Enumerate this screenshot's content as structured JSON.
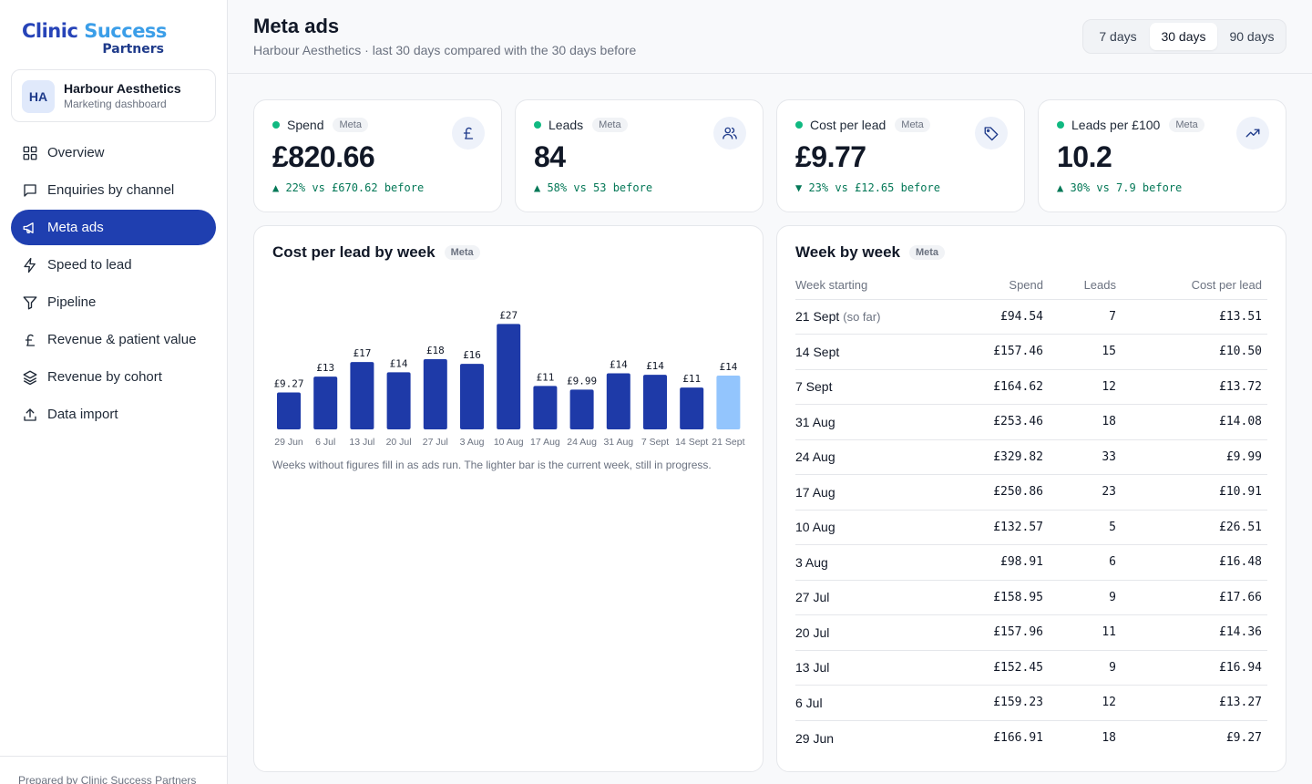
{
  "brand": {
    "line1_first": "Clinic",
    "line1_rest": " Success",
    "line2": "Partners"
  },
  "account": {
    "initials": "HA",
    "name": "Harbour Aesthetics",
    "subtitle": "Marketing dashboard"
  },
  "nav": [
    {
      "label": "Overview",
      "icon": "grid-icon",
      "active": false
    },
    {
      "label": "Enquiries by channel",
      "icon": "chat-icon",
      "active": false
    },
    {
      "label": "Meta ads",
      "icon": "megaphone-icon",
      "active": true
    },
    {
      "label": "Speed to lead",
      "icon": "bolt-icon",
      "active": false
    },
    {
      "label": "Pipeline",
      "icon": "filter-icon",
      "active": false
    },
    {
      "label": "Revenue & patient value",
      "icon": "pound-icon",
      "active": false
    },
    {
      "label": "Revenue by cohort",
      "icon": "layers-icon",
      "active": false
    },
    {
      "label": "Data import",
      "icon": "upload-icon",
      "active": false
    }
  ],
  "footer": "Prepared by Clinic Success Partners",
  "header": {
    "title": "Meta ads",
    "subtitle": "Harbour Aesthetics · last 30 days compared with the 30 days before",
    "ranges": [
      "7 days",
      "30 days",
      "90 days"
    ],
    "selected_range": "30 days"
  },
  "kpis": [
    {
      "label": "Spend",
      "tag": "Meta",
      "value": "£820.66",
      "delta": "▲ 22% vs £670.62 before",
      "icon": "pound-icon"
    },
    {
      "label": "Leads",
      "tag": "Meta",
      "value": "84",
      "delta": "▲ 58% vs 53 before",
      "icon": "users-icon"
    },
    {
      "label": "Cost per lead",
      "tag": "Meta",
      "value": "£9.77",
      "delta": "▼ 23% vs £12.65 before",
      "icon": "tag-icon"
    },
    {
      "label": "Leads per £100",
      "tag": "Meta",
      "value": "10.2",
      "delta": "▲ 30% vs 7.9 before",
      "icon": "trend-up-icon"
    }
  ],
  "chart_panel": {
    "title": "Cost per lead by week",
    "tag": "Meta",
    "note": "Weeks without figures fill in as ads run. The lighter bar is the current week, still in progress."
  },
  "chart_data": {
    "type": "bar",
    "title": "Cost per lead by week",
    "categories": [
      "29 Jun",
      "6 Jul",
      "13 Jul",
      "20 Jul",
      "27 Jul",
      "3 Aug",
      "10 Aug",
      "17 Aug",
      "24 Aug",
      "31 Aug",
      "7 Sept",
      "14 Sept",
      "21 Sept"
    ],
    "values": [
      9.27,
      13.27,
      16.94,
      14.36,
      17.66,
      16.48,
      26.51,
      10.91,
      9.99,
      14.08,
      13.72,
      10.5,
      13.51
    ],
    "data_labels": [
      "£9.27",
      "£13",
      "£17",
      "£14",
      "£18",
      "£16",
      "£27",
      "£11",
      "£9.99",
      "£14",
      "£14",
      "£11",
      "£14"
    ],
    "current_index": 12,
    "colors": {
      "bar": "#1e3aa8",
      "current": "#93c5fd"
    },
    "ylim": [
      0,
      27.5
    ],
    "grid": false
  },
  "table_panel": {
    "title": "Week by week",
    "tag": "Meta",
    "columns": [
      "Week starting",
      "Spend",
      "Leads",
      "Cost per lead"
    ],
    "rows": [
      {
        "week": "21 Sept",
        "note": "(so far)",
        "spend": "£94.54",
        "leads": "7",
        "cpl": "£13.51"
      },
      {
        "week": "14 Sept",
        "note": "",
        "spend": "£157.46",
        "leads": "15",
        "cpl": "£10.50"
      },
      {
        "week": "7 Sept",
        "note": "",
        "spend": "£164.62",
        "leads": "12",
        "cpl": "£13.72"
      },
      {
        "week": "31 Aug",
        "note": "",
        "spend": "£253.46",
        "leads": "18",
        "cpl": "£14.08"
      },
      {
        "week": "24 Aug",
        "note": "",
        "spend": "£329.82",
        "leads": "33",
        "cpl": "£9.99"
      },
      {
        "week": "17 Aug",
        "note": "",
        "spend": "£250.86",
        "leads": "23",
        "cpl": "£10.91"
      },
      {
        "week": "10 Aug",
        "note": "",
        "spend": "£132.57",
        "leads": "5",
        "cpl": "£26.51"
      },
      {
        "week": "3 Aug",
        "note": "",
        "spend": "£98.91",
        "leads": "6",
        "cpl": "£16.48"
      },
      {
        "week": "27 Jul",
        "note": "",
        "spend": "£158.95",
        "leads": "9",
        "cpl": "£17.66"
      },
      {
        "week": "20 Jul",
        "note": "",
        "spend": "£157.96",
        "leads": "11",
        "cpl": "£14.36"
      },
      {
        "week": "13 Jul",
        "note": "",
        "spend": "£152.45",
        "leads": "9",
        "cpl": "£16.94"
      },
      {
        "week": "6 Jul",
        "note": "",
        "spend": "£159.23",
        "leads": "12",
        "cpl": "£13.27"
      },
      {
        "week": "29 Jun",
        "note": "",
        "spend": "£166.91",
        "leads": "18",
        "cpl": "£9.27"
      }
    ]
  }
}
